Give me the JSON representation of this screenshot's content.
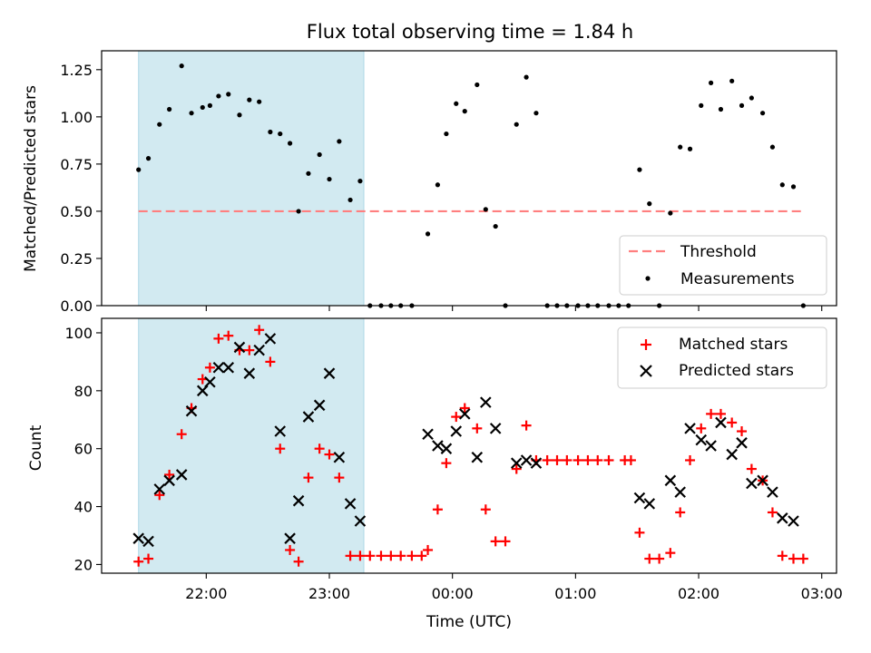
{
  "title": "Flux total observing time = 1.84 h",
  "colors": {
    "shade": "#add8e6",
    "threshold": "#ff7f7f",
    "measurement": "#000000",
    "matched": "#ff0000",
    "predicted": "#000000"
  },
  "chart_data": [
    {
      "type": "scatter",
      "ylabel": "Matched/Predicted stars",
      "ylim": [
        0,
        1.35
      ],
      "xlim": [
        21.15,
        3.12
      ],
      "y_ticks": [
        "0.00",
        "0.25",
        "0.50",
        "0.75",
        "1.00",
        "1.25"
      ],
      "legend_placement": "lower-right",
      "threshold": {
        "name": "Threshold",
        "value": 0.5,
        "x_range": [
          21.45,
          2.85
        ]
      },
      "shaded_interval": [
        21.45,
        23.28
      ],
      "series": [
        {
          "name": "Measurements",
          "x": [
            21.45,
            21.53,
            21.62,
            21.7,
            21.8,
            21.88,
            21.97,
            22.03,
            22.1,
            22.18,
            22.27,
            22.35,
            22.43,
            22.52,
            22.6,
            22.68,
            22.75,
            22.83,
            22.92,
            23.0,
            23.08,
            23.17,
            23.25,
            23.33,
            23.42,
            23.5,
            23.58,
            23.67,
            23.8,
            23.88,
            23.95,
            24.03,
            24.1,
            24.2,
            24.27,
            24.35,
            24.43,
            24.52,
            24.6,
            24.68,
            24.77,
            24.85,
            24.93,
            25.02,
            25.1,
            25.18,
            25.27,
            25.35,
            25.43,
            25.52,
            25.6,
            25.68,
            25.77,
            25.85,
            25.93,
            26.02,
            26.1,
            26.18,
            26.27,
            26.35,
            26.43,
            26.52,
            26.6,
            26.68,
            26.77,
            26.85
          ],
          "y": [
            0.72,
            0.78,
            0.96,
            1.04,
            1.27,
            1.02,
            1.05,
            1.06,
            1.11,
            1.12,
            1.01,
            1.09,
            1.08,
            0.92,
            0.91,
            0.86,
            0.5,
            0.7,
            0.8,
            0.67,
            0.87,
            0.56,
            0.66,
            0.0,
            0.0,
            0.0,
            0.0,
            0.0,
            0.38,
            0.64,
            0.91,
            1.07,
            1.03,
            1.17,
            0.51,
            0.42,
            0.0,
            0.96,
            1.21,
            1.02,
            0.0,
            0.0,
            0.0,
            0.0,
            0.0,
            0.0,
            0.0,
            0.0,
            0.0,
            0.72,
            0.54,
            0.0,
            0.49,
            0.84,
            0.83,
            1.06,
            1.18,
            1.04,
            1.19,
            1.06,
            1.1,
            1.02,
            0.84,
            0.64,
            0.63,
            0.0
          ]
        }
      ]
    },
    {
      "type": "scatter",
      "ylabel": "Count",
      "xlabel": "Time (UTC)",
      "ylim": [
        17,
        105
      ],
      "xlim": [
        21.15,
        3.12
      ],
      "y_ticks": [
        "20",
        "40",
        "60",
        "80",
        "100"
      ],
      "x_ticks": [
        "22:00",
        "23:00",
        "00:00",
        "01:00",
        "02:00",
        "03:00"
      ],
      "legend_placement": "upper-right",
      "shaded_interval": [
        21.45,
        23.28
      ],
      "series": [
        {
          "name": "Matched stars",
          "x": [
            21.45,
            21.53,
            21.62,
            21.7,
            21.8,
            21.88,
            21.97,
            22.03,
            22.1,
            22.18,
            22.27,
            22.35,
            22.43,
            22.52,
            22.6,
            22.68,
            22.75,
            22.83,
            22.92,
            23.0,
            23.08,
            23.17,
            23.25,
            23.33,
            23.42,
            23.5,
            23.58,
            23.67,
            23.75,
            23.8,
            23.88,
            23.95,
            24.03,
            24.1,
            24.2,
            24.27,
            24.35,
            24.43,
            24.52,
            24.6,
            24.68,
            24.77,
            24.85,
            24.93,
            25.02,
            25.1,
            25.18,
            25.27,
            25.4,
            25.45,
            25.52,
            25.6,
            25.68,
            25.77,
            25.85,
            25.93,
            26.02,
            26.1,
            26.18,
            26.27,
            26.35,
            26.43,
            26.52,
            26.6,
            26.68,
            26.77,
            26.85
          ],
          "y": [
            21,
            22,
            44,
            51,
            65,
            74,
            84,
            88,
            98,
            99,
            94,
            94,
            101,
            90,
            60,
            25,
            21,
            50,
            60,
            58,
            50,
            23,
            23,
            23,
            23,
            23,
            23,
            23,
            23,
            25,
            39,
            55,
            71,
            74,
            67,
            39,
            28,
            28,
            53,
            68,
            56,
            56,
            56,
            56,
            56,
            56,
            56,
            56,
            56,
            56,
            31,
            22,
            22,
            24,
            38,
            56,
            67,
            72,
            72,
            69,
            66,
            53,
            49,
            38,
            23,
            22,
            22
          ]
        },
        {
          "name": "Predicted stars",
          "x": [
            21.45,
            21.53,
            21.62,
            21.7,
            21.8,
            21.88,
            21.97,
            22.03,
            22.1,
            22.18,
            22.27,
            22.35,
            22.43,
            22.52,
            22.6,
            22.68,
            22.75,
            22.83,
            22.92,
            23.0,
            23.08,
            23.17,
            23.25,
            23.8,
            23.88,
            23.95,
            24.03,
            24.1,
            24.2,
            24.27,
            24.35,
            24.52,
            24.6,
            24.68,
            25.52,
            25.6,
            25.77,
            25.85,
            25.93,
            26.02,
            26.1,
            26.18,
            26.27,
            26.35,
            26.43,
            26.52,
            26.6,
            26.68,
            26.77
          ],
          "y": [
            29,
            28,
            46,
            49,
            51,
            73,
            80,
            83,
            88,
            88,
            95,
            86,
            94,
            98,
            66,
            29,
            42,
            71,
            75,
            86,
            57,
            41,
            35,
            65,
            61,
            60,
            66,
            72,
            57,
            76,
            67,
            55,
            56,
            55,
            43,
            41,
            49,
            45,
            67,
            63,
            61,
            69,
            58,
            62,
            48,
            49,
            45,
            36,
            35
          ]
        }
      ]
    }
  ]
}
